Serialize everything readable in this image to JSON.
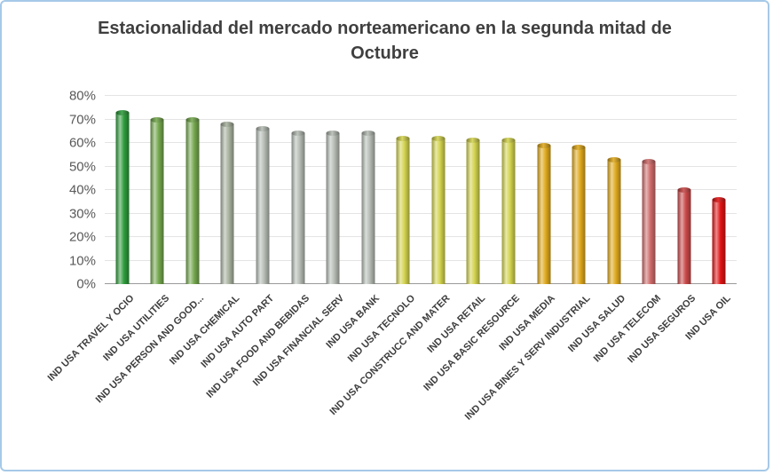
{
  "chart_data": {
    "type": "bar",
    "title": "Estacionalidad del mercado norteamericano en la segunda mitad de Octubre",
    "xlabel": "",
    "ylabel": "",
    "ylim": [
      0,
      80
    ],
    "grid": true,
    "legend": "none",
    "frame_border_color": "#a6c9e8",
    "background_color": "#ffffff",
    "title_color": "#3f3f3f",
    "axis_label_color": "#595959",
    "category_label_color": "#3d3d3d",
    "yticks": [
      {
        "value": 0,
        "label": "0%"
      },
      {
        "value": 10,
        "label": "10%"
      },
      {
        "value": 20,
        "label": "20%"
      },
      {
        "value": 30,
        "label": "30%"
      },
      {
        "value": 40,
        "label": "40%"
      },
      {
        "value": 50,
        "label": "50%"
      },
      {
        "value": 60,
        "label": "60%"
      },
      {
        "value": 70,
        "label": "70%"
      },
      {
        "value": 80,
        "label": "80%"
      }
    ],
    "categories": [
      "IND USA TRAVEL Y OCIO",
      "IND USA UTILITIES",
      "IND USA PERSON AND GOOD...",
      "IND USA CHEMICAL",
      "IND USA AUTO PART",
      "IND USA FOOD AND BEBIDAS",
      "IND USA FINANCIAL SERV",
      "IND USA BANK",
      "IND USA TECNOLO",
      "IND USA CONSTRUCC AND MATER",
      "IND USA RETAIL",
      "IND USA BASIC RESOURCE",
      "IND USA MEDIA",
      "IND USA BINES Y SERV INDUSTRIAL",
      "IND USA SALUD",
      "IND USA TELECOM",
      "IND USA SEGUROS",
      "IND USA OIL"
    ],
    "values": [
      73,
      70,
      70,
      68,
      66,
      64,
      64,
      64,
      62,
      62,
      61,
      61,
      59,
      58,
      53,
      52,
      40,
      36
    ],
    "bar_colors": [
      "#2e9b3c",
      "#74a84e",
      "#74a84e",
      "#a9b3a0",
      "#b5bcb4",
      "#b5bcb4",
      "#b5bcb4",
      "#b5bcb4",
      "#d3d34f",
      "#d3d34f",
      "#d3d34f",
      "#d3d34f",
      "#dfa91d",
      "#dfa91d",
      "#dfa91d",
      "#cf6b6b",
      "#c94848",
      "#e01414"
    ]
  }
}
